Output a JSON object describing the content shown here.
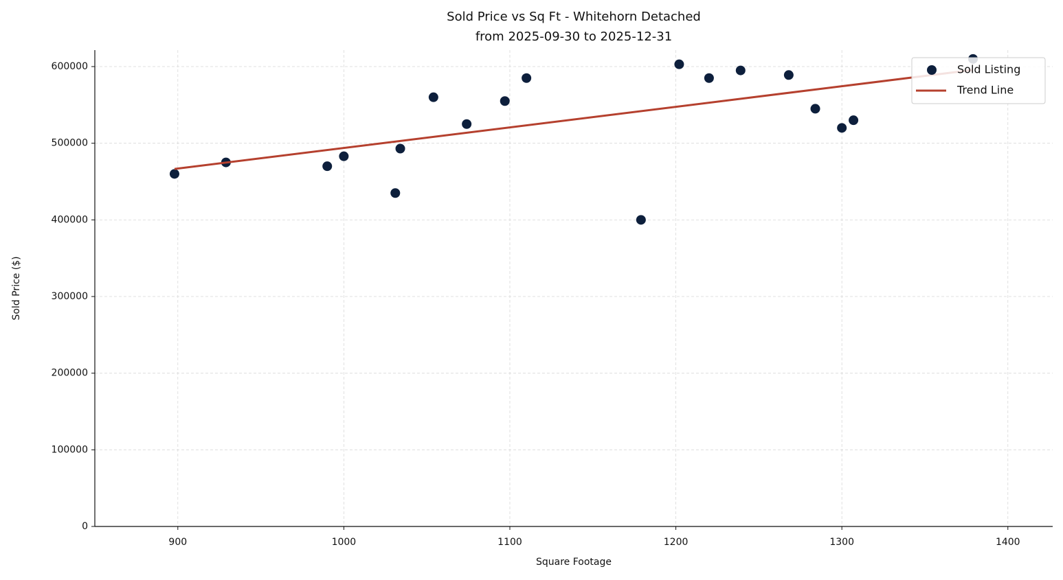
{
  "chart_data": {
    "type": "scatter",
    "title": "Sold Price vs Sq Ft - Whitehorn Detached",
    "subtitle": "from 2025-09-30 to 2025-12-31",
    "x_label": "Square Footage",
    "y_label": "Sold Price ($)",
    "xlim": [
      850,
      1427
    ],
    "ylim": [
      0,
      621500
    ],
    "xticks": [
      900,
      1000,
      1100,
      1200,
      1300,
      1400
    ],
    "yticks": [
      0,
      100000,
      200000,
      300000,
      400000,
      500000,
      600000
    ],
    "grid": true,
    "legend": "upper right",
    "series": [
      {
        "name": "Sold Listing",
        "type": "scatter",
        "color": "#0d1f3c",
        "x": [
          898,
          929,
          990,
          1000,
          1031,
          1034,
          1054,
          1074,
          1097,
          1110,
          1179,
          1202,
          1220,
          1239,
          1268,
          1284,
          1300,
          1307,
          1379
        ],
        "values": [
          460000,
          475000,
          470000,
          483000,
          435000,
          493000,
          560000,
          525000,
          555000,
          585000,
          400000,
          603000,
          585000,
          595000,
          589000,
          545000,
          520000,
          530000,
          610000
        ]
      },
      {
        "name": "Trend Line",
        "type": "line",
        "color": "#b5402e",
        "x": [
          898,
          1379
        ],
        "values": [
          466400,
          595600
        ]
      }
    ]
  }
}
